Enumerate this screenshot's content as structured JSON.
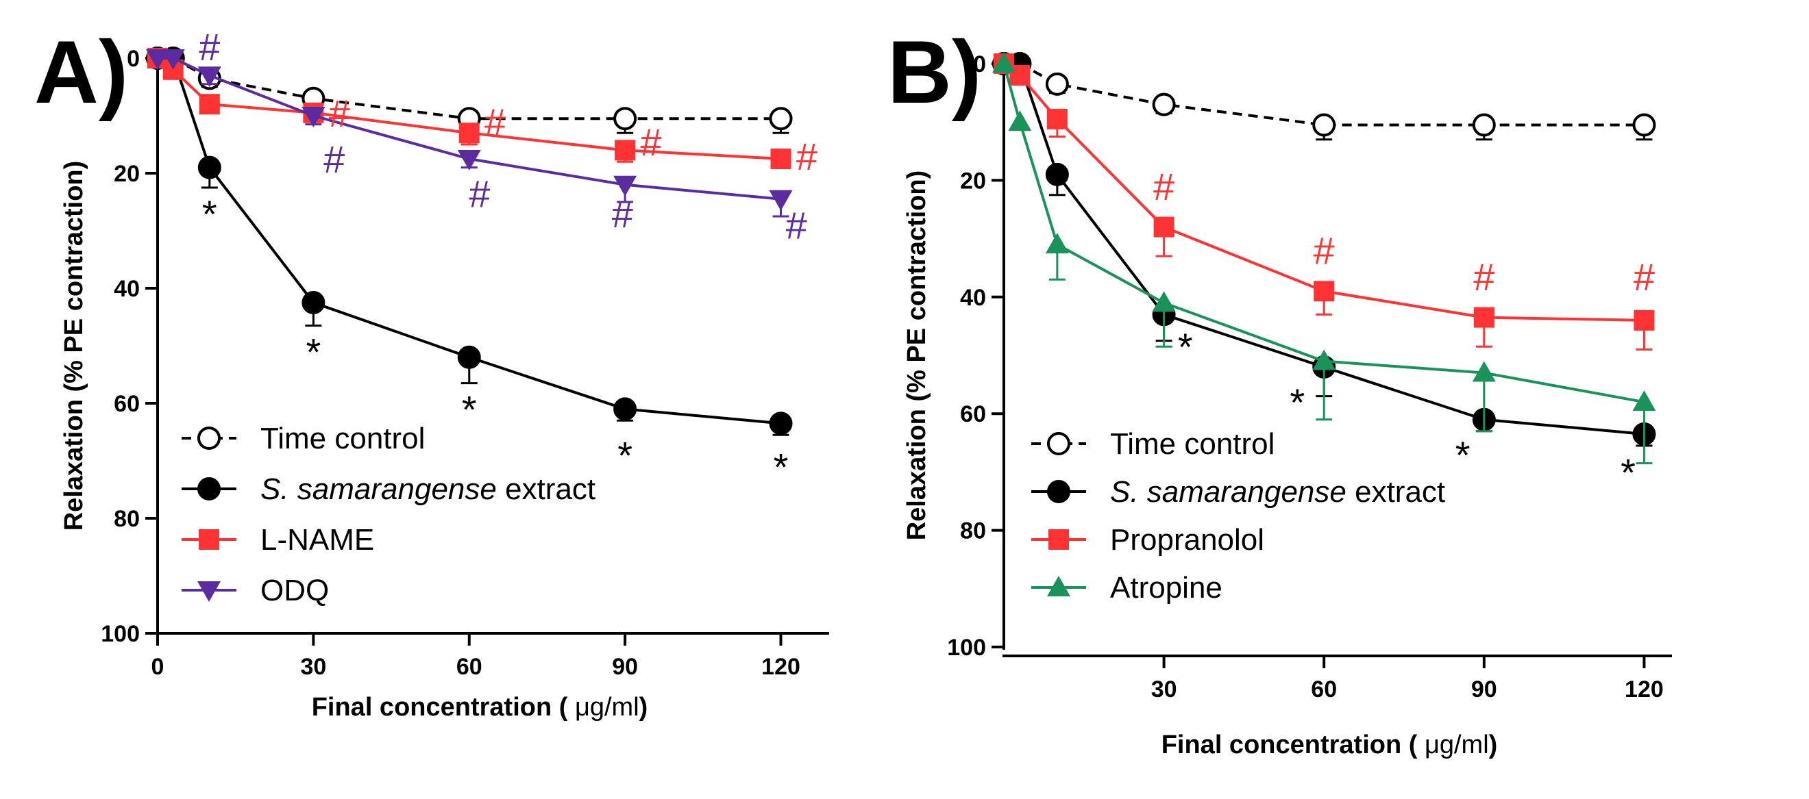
{
  "colors": {
    "time_control": "#000000",
    "extract": "#000000",
    "l_name": "#ff3333",
    "odq": "#5a2ca0",
    "propranolol": "#ff3333",
    "atropine": "#19935a"
  },
  "chart_data": [
    {
      "type": "line",
      "panel_label": "A)",
      "xlabel_prefix": "Final concentration ( ",
      "xlabel_unit": "μg/ml",
      "xlabel_suffix": ")",
      "ylabel": "Relaxation (% PE contraction)",
      "xlim": [
        0,
        126
      ],
      "ylim": [
        0,
        100
      ],
      "y_inverted": true,
      "x_ticks": [
        0,
        30,
        60,
        90,
        120
      ],
      "x_tick_labels": [
        "0",
        "30",
        "60",
        "90",
        "120"
      ],
      "y_ticks": [
        0,
        20,
        40,
        60,
        80,
        100
      ],
      "y_tick_labels": [
        "0",
        "20",
        "40",
        "60",
        "80",
        "100"
      ],
      "legend_position": "bottom-left",
      "series": [
        {
          "name": "Time control",
          "marker": "circle-open",
          "line": "dashed",
          "color_key": "time_control",
          "x": [
            0,
            3,
            10,
            30,
            60,
            90,
            120
          ],
          "values": [
            0,
            0,
            3.5,
            7,
            10.5,
            10.5,
            10.5
          ],
          "errors": [
            0,
            0,
            1.5,
            1.5,
            2.5,
            2.5,
            2.5
          ]
        },
        {
          "name": "S. samarangense extract",
          "name_italic": "S. samarangense",
          "name_rest": " extract",
          "marker": "circle",
          "line": "solid",
          "color_key": "extract",
          "x": [
            0,
            3,
            10,
            30,
            60,
            90,
            120
          ],
          "values": [
            0,
            0,
            19,
            42.5,
            52,
            61,
            63.5
          ],
          "errors": [
            0,
            0,
            3.5,
            4,
            4.5,
            2,
            2
          ]
        },
        {
          "name": "L-NAME",
          "marker": "square",
          "line": "solid",
          "color_key": "l_name",
          "x": [
            0,
            3,
            10,
            30,
            60,
            90,
            120
          ],
          "values": [
            0,
            2,
            8,
            9.5,
            13,
            16,
            17.5
          ],
          "errors": [
            0,
            0,
            1,
            1.5,
            2,
            2,
            1.5
          ]
        },
        {
          "name": "ODQ",
          "marker": "triangle-down",
          "line": "solid",
          "color_key": "odq",
          "x": [
            0,
            3,
            10,
            30,
            60,
            90,
            120
          ],
          "values": [
            0,
            0,
            3,
            10,
            17.5,
            22,
            24.5
          ],
          "errors": [
            0,
            0,
            1.5,
            1.5,
            1.5,
            3,
            3
          ]
        }
      ],
      "annotations": [
        {
          "text": "#",
          "color_key": "odq",
          "x": 10,
          "y": -2
        },
        {
          "text": "*",
          "color_key": "extract",
          "x": 10,
          "y": 27
        },
        {
          "text": "#",
          "color_key": "l_name",
          "x": 35,
          "y": 9.5
        },
        {
          "text": "#",
          "color_key": "odq",
          "x": 34,
          "y": 17.5
        },
        {
          "text": "*",
          "color_key": "extract",
          "x": 30,
          "y": 51
        },
        {
          "text": "#",
          "color_key": "l_name",
          "x": 65,
          "y": 11
        },
        {
          "text": "#",
          "color_key": "odq",
          "x": 62,
          "y": 23.5
        },
        {
          "text": "*",
          "color_key": "extract",
          "x": 60,
          "y": 61
        },
        {
          "text": "#",
          "color_key": "l_name",
          "x": 95,
          "y": 14.5
        },
        {
          "text": "#",
          "color_key": "odq",
          "x": 89.5,
          "y": 27
        },
        {
          "text": "*",
          "color_key": "extract",
          "x": 90,
          "y": 69
        },
        {
          "text": "#",
          "color_key": "l_name",
          "x": 125,
          "y": 17
        },
        {
          "text": "#",
          "color_key": "odq",
          "x": 123,
          "y": 29
        },
        {
          "text": "*",
          "color_key": "extract",
          "x": 120,
          "y": 71
        }
      ]
    },
    {
      "type": "line",
      "panel_label": "B)",
      "xlabel_prefix": "Final concentration ( ",
      "xlabel_unit": "μg/ml",
      "xlabel_suffix": ")",
      "ylabel": "Relaxation (% PE contraction)",
      "xlim": [
        0,
        122
      ],
      "ylim": [
        0,
        100
      ],
      "y_inverted": true,
      "x_ticks": [
        30,
        60,
        90,
        120
      ],
      "x_tick_labels": [
        "30",
        "60",
        "90",
        "120"
      ],
      "y_ticks": [
        0,
        20,
        40,
        60,
        80,
        100
      ],
      "y_tick_labels": [
        "0",
        "20",
        "40",
        "60",
        "80",
        "100"
      ],
      "legend_position": "bottom-left",
      "series": [
        {
          "name": "Time control",
          "marker": "circle-open",
          "line": "dashed",
          "color_key": "time_control",
          "x": [
            0,
            3,
            10,
            30,
            60,
            90,
            120
          ],
          "values": [
            0,
            0,
            3.5,
            7,
            10.5,
            10.5,
            10.5
          ],
          "errors": [
            0,
            0,
            1.5,
            1.5,
            2.5,
            2.5,
            2.5
          ]
        },
        {
          "name": "S. samarangense extract",
          "name_italic": "S. samarangense",
          "name_rest": " extract",
          "marker": "circle",
          "line": "solid",
          "color_key": "extract",
          "x": [
            0,
            3,
            10,
            30,
            60,
            90,
            120
          ],
          "values": [
            0,
            0,
            19,
            43,
            52,
            61,
            63.5
          ],
          "errors": [
            0,
            0,
            3.5,
            4.5,
            5,
            2,
            2
          ]
        },
        {
          "name": "Propranolol",
          "marker": "square",
          "line": "solid",
          "color_key": "propranolol",
          "x": [
            0,
            3,
            10,
            30,
            60,
            90,
            120
          ],
          "values": [
            0,
            2,
            9.5,
            28,
            39,
            43.5,
            44
          ],
          "errors": [
            0,
            0,
            3,
            5,
            4,
            5,
            5
          ]
        },
        {
          "name": "Atropine",
          "marker": "triangle-up",
          "line": "solid",
          "color_key": "atropine",
          "x": [
            0,
            3,
            10,
            30,
            60,
            90,
            120
          ],
          "values": [
            0,
            10,
            31,
            41,
            51,
            53,
            58
          ],
          "errors": [
            0,
            0,
            6,
            7.5,
            10,
            10,
            10.5
          ]
        }
      ],
      "annotations": [
        {
          "text": "#",
          "color_key": "propranolol",
          "x": 30,
          "y": 21
        },
        {
          "text": "*",
          "color_key": "extract",
          "x": 34,
          "y": 48.5
        },
        {
          "text": "#",
          "color_key": "propranolol",
          "x": 60,
          "y": 32
        },
        {
          "text": "*",
          "color_key": "extract",
          "x": 55,
          "y": 58
        },
        {
          "text": "#",
          "color_key": "propranolol",
          "x": 90,
          "y": 36.5
        },
        {
          "text": "*",
          "color_key": "extract",
          "x": 86,
          "y": 67
        },
        {
          "text": "#",
          "color_key": "propranolol",
          "x": 120,
          "y": 36.5
        },
        {
          "text": "*",
          "color_key": "extract",
          "x": 117,
          "y": 70
        }
      ]
    }
  ]
}
